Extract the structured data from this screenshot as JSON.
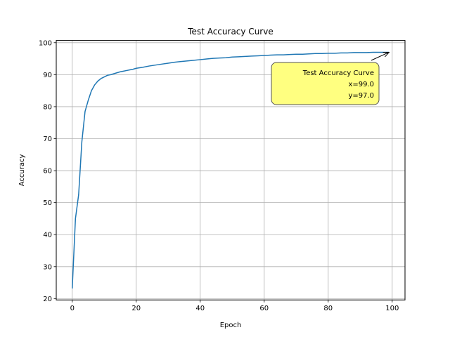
{
  "chart_data": {
    "type": "line",
    "title": "Test Accuracy Curve",
    "xlabel": "Epoch",
    "ylabel": "Accuracy",
    "xlim": [
      -5,
      104
    ],
    "ylim": [
      19.6,
      100.7
    ],
    "xticks": [
      0,
      20,
      40,
      60,
      80,
      100
    ],
    "yticks": [
      20,
      30,
      40,
      50,
      60,
      70,
      80,
      90,
      100
    ],
    "grid": true,
    "series": [
      {
        "color": "#1f77b4",
        "x": [
          0,
          1,
          2,
          3,
          4,
          5,
          6,
          7,
          8,
          9,
          10,
          11,
          12,
          13,
          14,
          15,
          16,
          17,
          18,
          19,
          20,
          22,
          24,
          26,
          28,
          30,
          32,
          34,
          36,
          38,
          40,
          42,
          44,
          46,
          48,
          50,
          52,
          54,
          56,
          58,
          60,
          62,
          64,
          66,
          68,
          70,
          72,
          74,
          76,
          78,
          80,
          82,
          84,
          86,
          88,
          90,
          92,
          94,
          96,
          98,
          99
        ],
        "y": [
          23.2,
          45.0,
          52.5,
          69.0,
          78.5,
          82.0,
          85.0,
          86.8,
          88.0,
          88.8,
          89.3,
          89.8,
          90.0,
          90.3,
          90.6,
          90.9,
          91.1,
          91.3,
          91.5,
          91.7,
          92.0,
          92.3,
          92.7,
          93.0,
          93.3,
          93.6,
          93.9,
          94.1,
          94.3,
          94.5,
          94.7,
          94.9,
          95.1,
          95.2,
          95.3,
          95.5,
          95.6,
          95.7,
          95.8,
          95.9,
          96.0,
          96.1,
          96.2,
          96.2,
          96.3,
          96.4,
          96.4,
          96.5,
          96.6,
          96.6,
          96.7,
          96.7,
          96.8,
          96.8,
          96.9,
          96.9,
          96.9,
          97.0,
          97.0,
          97.0,
          97.0
        ]
      }
    ],
    "annotation": {
      "lines": [
        "Test Accuracy Curve",
        "x=99.0",
        "y=97.0"
      ],
      "point": [
        99.0,
        97.0
      ],
      "box_color": "#ffff80"
    }
  }
}
